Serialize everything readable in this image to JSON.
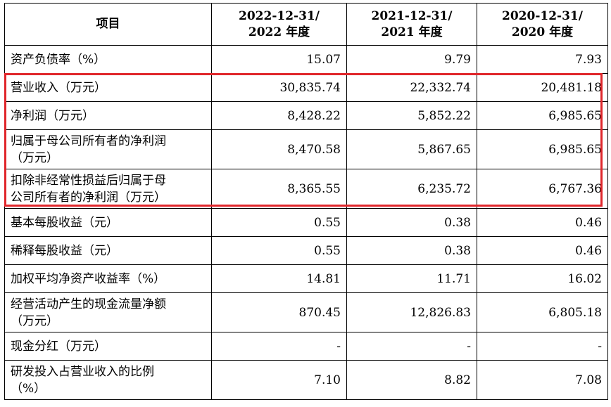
{
  "table": {
    "headers": [
      {
        "lines": [
          "项目"
        ]
      },
      {
        "lines": [
          "2022-12-31/",
          "2022 年度"
        ]
      },
      {
        "lines": [
          "2021-12-31/",
          "2021 年度"
        ]
      },
      {
        "lines": [
          "2020-12-31/",
          "2020 年度"
        ]
      }
    ],
    "rows": [
      {
        "label": [
          "资产负债率（%）"
        ],
        "values": [
          "15.07",
          "9.79",
          "7.93"
        ],
        "h": 40
      },
      {
        "label": [
          "营业收入（万元）"
        ],
        "values": [
          "30,835.74",
          "22,332.74",
          "20,481.18"
        ],
        "h": 40
      },
      {
        "label": [
          "净利润（万元）"
        ],
        "values": [
          "8,428.22",
          "5,852.22",
          "6,985.65"
        ],
        "h": 40
      },
      {
        "label": [
          "归属于母公司所有者的净利润",
          "（万元）"
        ],
        "values": [
          "8,470.58",
          "5,867.65",
          "6,985.65"
        ],
        "h": 56
      },
      {
        "label": [
          "扣除非经常性损益后归属于母",
          "公司所有者的净利润（万元）"
        ],
        "values": [
          "8,365.55",
          "6,235.72",
          "6,767.36"
        ],
        "h": 56
      },
      {
        "label": [
          "基本每股收益（元）"
        ],
        "values": [
          "0.55",
          "0.38",
          "0.46"
        ],
        "h": 40
      },
      {
        "label": [
          "稀释每股收益（元）"
        ],
        "values": [
          "0.55",
          "0.38",
          "0.46"
        ],
        "h": 40
      },
      {
        "label": [
          "加权平均净资产收益率（%）"
        ],
        "values": [
          "14.81",
          "11.71",
          "16.02"
        ],
        "h": 40
      },
      {
        "label": [
          "经营活动产生的现金流量净额",
          "（万元）"
        ],
        "values": [
          "870.45",
          "12,826.83",
          "6,805.18"
        ],
        "h": 56
      },
      {
        "label": [
          "现金分红（万元）"
        ],
        "values": [
          "-",
          "-",
          "-"
        ],
        "h": 40
      },
      {
        "label": [
          "研发投入占营业收入的比例",
          "（%）"
        ],
        "values": [
          "7.10",
          "8.82",
          "7.08"
        ],
        "h": 56
      }
    ]
  },
  "highlight": {
    "color": "#e0262b",
    "first_row": 1,
    "last_row": 4
  }
}
